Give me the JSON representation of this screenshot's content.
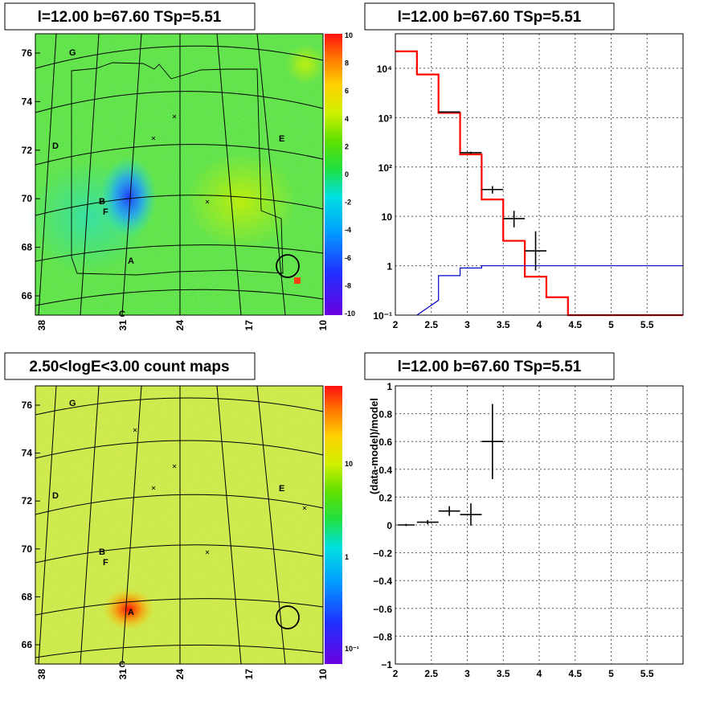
{
  "panels": {
    "tl_title": "l=12.00 b=67.60 TSp=5.51",
    "tr_title": "l=12.00 b=67.60 TSp=5.51",
    "bl_title": "2.50<logE<3.00 count maps",
    "br_title": "l=12.00 b=67.60 TSp=5.51"
  },
  "maps": {
    "x_ticks": [
      "38",
      "31",
      "24",
      "17",
      "10"
    ],
    "y_ticks": [
      "76",
      "74",
      "72",
      "70",
      "68",
      "66"
    ],
    "source_labels": [
      "G",
      "D",
      "E",
      "B",
      "F",
      "A",
      "C"
    ],
    "residual_colorbar_ticks": [
      "10",
      "8",
      "6",
      "4",
      "2",
      "0",
      "-2",
      "-4",
      "-6",
      "-8",
      "-10"
    ],
    "counts_colorbar_ticks": [
      "10",
      "1",
      "10⁻¹"
    ]
  },
  "chart_data": [
    {
      "type": "map",
      "panel": "top-left",
      "title": "l=12.00 b=67.60 TSp=5.51",
      "description_values": {
        "x_range": [
          38,
          10
        ],
        "y_range": [
          65.5,
          77
        ],
        "colorbar_range": [
          -10,
          10
        ]
      }
    },
    {
      "type": "line",
      "panel": "top-right",
      "title": "l=12.00 b=67.60 TSp=5.51",
      "xlim": [
        2,
        6
      ],
      "ylim": [
        0.1,
        50000
      ],
      "yscale": "log",
      "grid": true,
      "x_ticks": [
        "2",
        "2.5",
        "3",
        "3.5",
        "4",
        "4.5",
        "5",
        "5.5"
      ],
      "y_ticks": [
        "10⁻¹",
        "1",
        "10",
        "10²",
        "10³",
        "10⁴"
      ],
      "series": [
        {
          "style": "step",
          "color": "#ff0000",
          "bin_edges": [
            2.0,
            2.3,
            2.6,
            2.9,
            3.2,
            3.5,
            3.8,
            4.1,
            4.4,
            6.0
          ],
          "values": [
            22000,
            7500,
            1250,
            180,
            22,
            3.2,
            0.6,
            0.23,
            0.1
          ]
        },
        {
          "style": "step",
          "color": "#0000cc",
          "bin_edges": [
            2.3,
            2.6,
            2.9,
            3.2,
            6.0
          ],
          "values": [
            0.2,
            0.63,
            0.9,
            1.0
          ]
        },
        {
          "style": "errorbar",
          "color": "#000000",
          "x": [
            2.75,
            3.05,
            3.35,
            3.65,
            3.95
          ],
          "y": [
            1300,
            195,
            35,
            9,
            2
          ],
          "x_err": 0.15,
          "y_lo": [
            1270,
            185,
            29,
            6,
            0.8
          ],
          "y_hi": [
            1340,
            205,
            41,
            13,
            5
          ]
        }
      ]
    },
    {
      "type": "map",
      "panel": "bottom-left",
      "title": "2.50<logE<3.00 count maps",
      "description_values": {
        "x_range": [
          38,
          10
        ],
        "y_range": [
          65.5,
          77
        ],
        "colorbar_scale": "log"
      }
    },
    {
      "type": "scatter",
      "panel": "bottom-right",
      "title": "l=12.00 b=67.60 TSp=5.51",
      "ylabel": "(data-model)/model",
      "xlim": [
        2,
        6
      ],
      "ylim": [
        -1,
        1
      ],
      "grid": true,
      "x_ticks": [
        "2",
        "2.5",
        "3",
        "3.5",
        "4",
        "4.5",
        "5",
        "5.5"
      ],
      "y_ticks": [
        "1",
        "0.8",
        "0.6",
        "0.4",
        "0.2",
        "0",
        "−0.2",
        "−0.4",
        "−0.6",
        "−0.8",
        "−1"
      ],
      "points": [
        {
          "x": 2.15,
          "y": 0.0,
          "x_err": 0.12,
          "y_err": 0.008
        },
        {
          "x": 2.45,
          "y": 0.02,
          "x_err": 0.15,
          "y_err": 0.015
        },
        {
          "x": 2.75,
          "y": 0.1,
          "x_err": 0.15,
          "y_err": 0.035
        },
        {
          "x": 3.05,
          "y": 0.075,
          "x_err": 0.15,
          "y_err": 0.08
        },
        {
          "x": 3.35,
          "y": 0.6,
          "x_err": 0.15,
          "y_err": 0.27
        }
      ]
    }
  ]
}
